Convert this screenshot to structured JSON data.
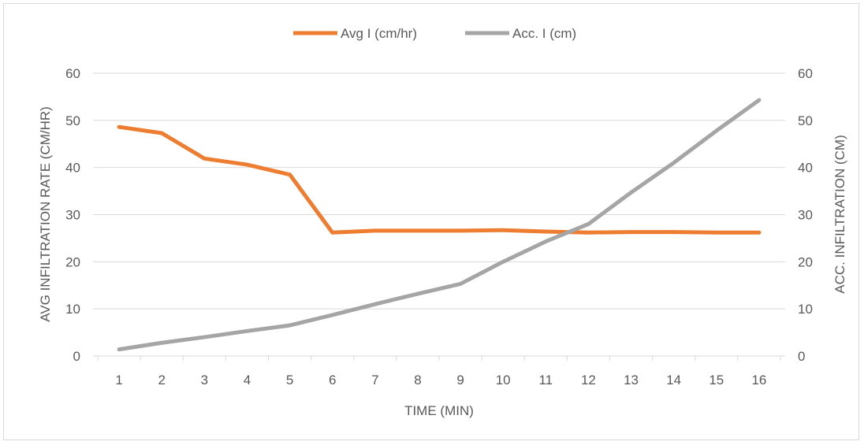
{
  "chart_data": {
    "type": "line",
    "title": "",
    "xlabel": "TIME (MIN)",
    "ylabel_left": "AVG INFILTRATION RATE (CM/HR)",
    "ylabel_right": "ACC. INFILTRATION (CM)",
    "categories": [
      "1",
      "2",
      "3",
      "4",
      "5",
      "6",
      "7",
      "8",
      "9",
      "10",
      "11",
      "12",
      "13",
      "14",
      "15",
      "16"
    ],
    "ylim_left": [
      0,
      60
    ],
    "ylim_right": [
      0,
      60
    ],
    "yticks_left": [
      "0",
      "10",
      "20",
      "30",
      "40",
      "50",
      "60"
    ],
    "yticks_right": [
      "0",
      "10",
      "20",
      "30",
      "40",
      "50",
      "60"
    ],
    "grid": true,
    "legend_position": "top",
    "series": [
      {
        "name": "Avg I (cm/hr)",
        "axis": "left",
        "color": "#ed7d31",
        "values": [
          48.6,
          47.3,
          41.9,
          40.6,
          38.5,
          26.2,
          26.6,
          26.6,
          26.6,
          26.7,
          26.4,
          26.2,
          26.3,
          26.3,
          26.2,
          26.2
        ]
      },
      {
        "name": "Acc. I (cm)",
        "axis": "right",
        "color": "#a5a5a5",
        "values": [
          1.4,
          2.8,
          4.0,
          5.3,
          6.5,
          8.7,
          11.0,
          13.2,
          15.3,
          20.0,
          24.3,
          28.0,
          34.7,
          41.0,
          47.8,
          54.3
        ]
      }
    ]
  }
}
